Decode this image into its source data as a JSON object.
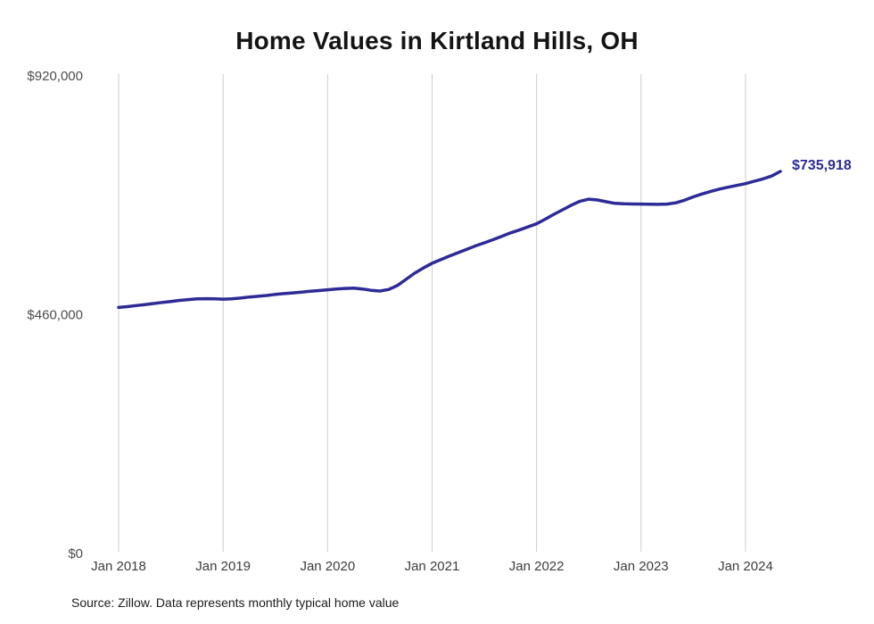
{
  "page": {
    "background_color": "#ffffff"
  },
  "chart": {
    "title": "Home Values in Kirtland Hills, OH",
    "latest_value_label": "$735,918",
    "source_note": "Source: Zillow. Data represents monthly typical home value"
  },
  "chart_data": {
    "type": "line",
    "title": "Home Values in Kirtland Hills, OH",
    "series_name": "Monthly typical home value",
    "frequency": "monthly",
    "start_month": "2018-01",
    "end_month": "2024-05",
    "x_tick_labels": [
      "Jan 2018",
      "Jan 2019",
      "Jan 2020",
      "Jan 2021",
      "Jan 2022",
      "Jan 2023",
      "Jan 2024"
    ],
    "x_tick_month_indices": [
      0,
      12,
      24,
      36,
      48,
      60,
      72
    ],
    "y_tick_labels": [
      "$920,000",
      "$460,000",
      "$0"
    ],
    "y_tick_values": [
      920000,
      460000,
      0
    ],
    "ylim": [
      0,
      920000
    ],
    "grid": "vertical-only",
    "line_color": "#2e2b96",
    "tick_color": "#cccccc",
    "latest_value": 735918,
    "values": [
      474000,
      475500,
      477500,
      479500,
      481500,
      483500,
      485500,
      487500,
      489000,
      490500,
      490800,
      490500,
      490000,
      490500,
      492000,
      494000,
      495500,
      497000,
      499000,
      500500,
      502000,
      503500,
      505000,
      506500,
      508000,
      509500,
      510500,
      511000,
      509500,
      507000,
      505500,
      508500,
      516000,
      528000,
      540000,
      550000,
      559000,
      566000,
      573000,
      579500,
      586000,
      592500,
      598500,
      604500,
      611000,
      617500,
      623000,
      629000,
      635000,
      644000,
      653500,
      662000,
      671000,
      678500,
      682500,
      681000,
      677500,
      674500,
      673500,
      673200,
      673000,
      672800,
      672500,
      673000,
      675500,
      680500,
      687000,
      692500,
      697500,
      702000,
      705500,
      709000,
      712500,
      717000,
      721500,
      727000,
      735918
    ]
  }
}
